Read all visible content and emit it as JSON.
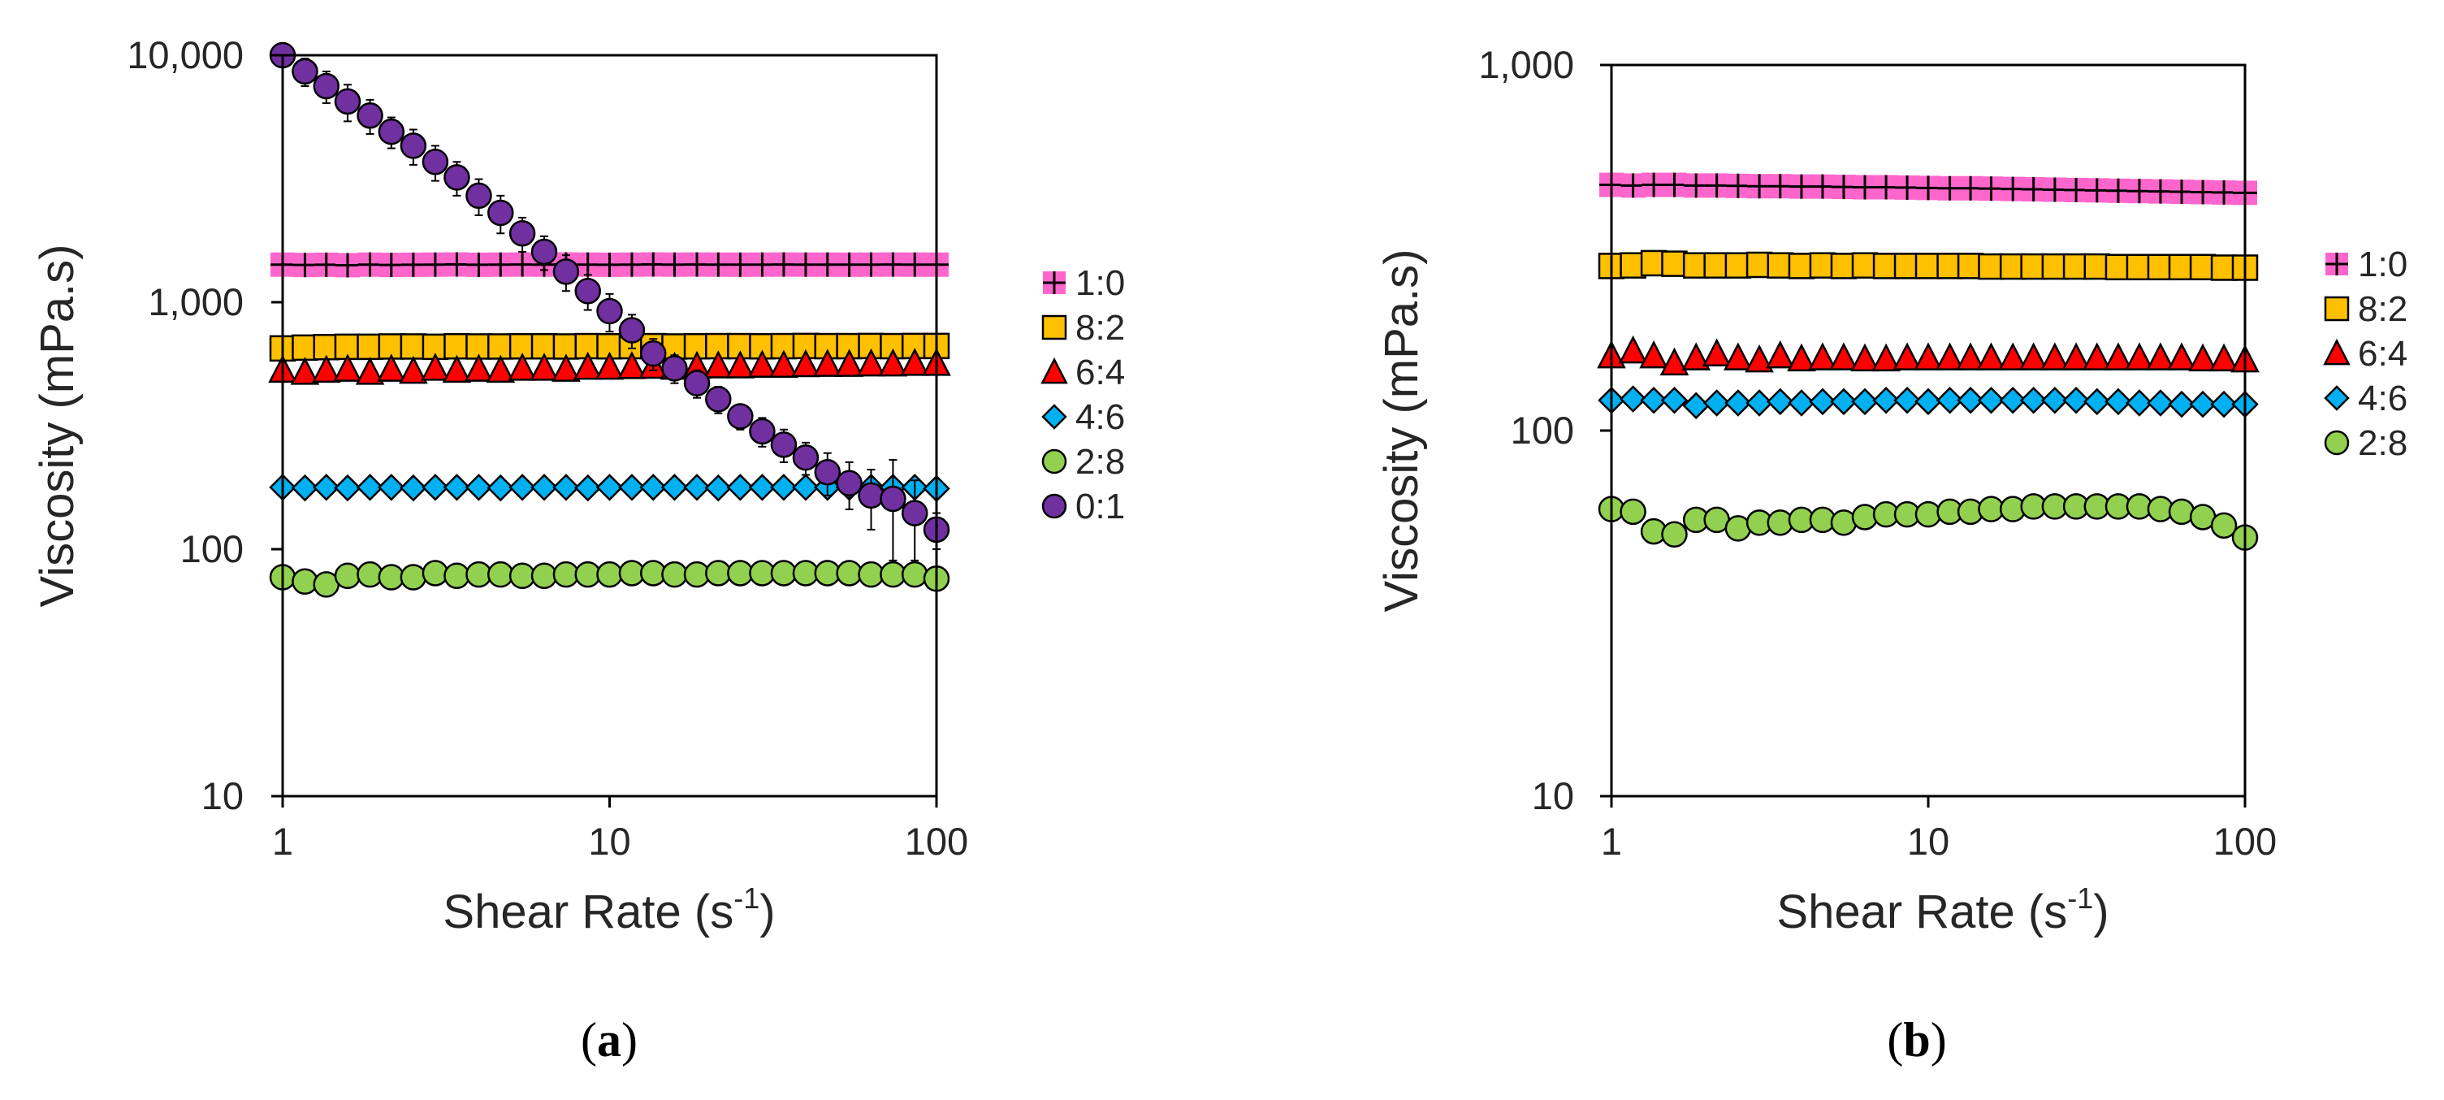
{
  "chart_data": [
    {
      "type": "scatter",
      "panel_label": "(a)",
      "panel_letter": "a",
      "xlabel": "Shear Rate (s",
      "xlabel_sup": "-1",
      "xlabel_end": ")",
      "ylabel": "Viscosity (mPa.s)",
      "xscale": "log",
      "yscale": "log",
      "xlim": [
        1,
        100
      ],
      "ylim": [
        10,
        10000
      ],
      "x_ticks": [
        1,
        10,
        100
      ],
      "x_tick_labels": [
        "1",
        "10",
        "100"
      ],
      "y_ticks": [
        10,
        100,
        1000,
        10000
      ],
      "y_tick_labels": [
        "10",
        "100",
        "1,000",
        "10,000"
      ],
      "grid": false,
      "legend_position": "right",
      "x": [
        1.0,
        1.17,
        1.36,
        1.58,
        1.85,
        2.15,
        2.51,
        2.93,
        3.41,
        3.98,
        4.64,
        5.41,
        6.31,
        7.36,
        8.58,
        10.0,
        11.7,
        13.6,
        15.8,
        18.5,
        21.5,
        25.1,
        29.3,
        34.1,
        39.8,
        46.4,
        54.1,
        63.1,
        73.6,
        85.8,
        100.0
      ],
      "series": [
        {
          "name": "1:0",
          "marker": "square-cross",
          "color": "#ff66cc",
          "values": [
            1420,
            1415,
            1418,
            1412,
            1420,
            1416,
            1418,
            1420,
            1422,
            1418,
            1420,
            1421,
            1420,
            1422,
            1420,
            1418,
            1420,
            1422,
            1420,
            1421,
            1420,
            1419,
            1420,
            1421,
            1420,
            1420,
            1419,
            1420,
            1421,
            1420,
            1420
          ]
        },
        {
          "name": "8:2",
          "marker": "square",
          "color": "#ffc000",
          "values": [
            650,
            655,
            658,
            660,
            660,
            662,
            662,
            660,
            663,
            662,
            662,
            663,
            663,
            662,
            664,
            663,
            664,
            664,
            662,
            663,
            664,
            664,
            663,
            664,
            665,
            664,
            664,
            665,
            664,
            665,
            665
          ]
        },
        {
          "name": "6:4",
          "marker": "triangle",
          "color": "#ff0000",
          "values": [
            530,
            520,
            530,
            535,
            520,
            535,
            525,
            540,
            530,
            535,
            530,
            540,
            540,
            535,
            545,
            545,
            548,
            550,
            545,
            550,
            552,
            552,
            555,
            555,
            558,
            560,
            560,
            562,
            562,
            565,
            565
          ]
        },
        {
          "name": "4:6",
          "marker": "diamond",
          "color": "#00b0f0",
          "values": [
            178,
            177,
            178,
            177,
            178,
            178,
            177,
            178,
            178,
            178,
            177,
            178,
            178,
            178,
            177,
            178,
            178,
            178,
            178,
            178,
            177,
            178,
            178,
            178,
            178,
            178,
            178,
            178,
            178,
            178,
            176
          ]
        },
        {
          "name": "2:8",
          "marker": "circle",
          "color": "#92d050",
          "values": [
            77,
            74,
            72,
            78,
            79,
            77,
            77,
            80,
            78,
            79,
            79,
            78,
            78,
            79,
            79,
            79,
            80,
            80,
            79,
            79,
            80,
            80,
            80,
            80,
            80,
            80,
            80,
            79,
            79,
            79,
            76
          ]
        },
        {
          "name": "0:1",
          "marker": "circle",
          "color": "#7030a0",
          "values": [
            10000,
            8600,
            7500,
            6500,
            5700,
            4900,
            4300,
            3700,
            3200,
            2700,
            2300,
            1900,
            1600,
            1330,
            1110,
            920,
            770,
            620,
            540,
            470,
            405,
            345,
            300,
            265,
            235,
            205,
            185,
            165,
            160,
            140,
            120
          ],
          "errors": [
            0,
            1100,
            1100,
            1100,
            900,
            700,
            700,
            600,
            500,
            450,
            400,
            300,
            250,
            220,
            180,
            160,
            120,
            90,
            70,
            60,
            50,
            40,
            40,
            40,
            35,
            40,
            40,
            45,
            70,
            50,
            20
          ]
        }
      ]
    },
    {
      "type": "scatter",
      "panel_label": "(b)",
      "panel_letter": "b",
      "xlabel": "Shear Rate (s",
      "xlabel_sup": "-1",
      "xlabel_end": ")",
      "ylabel": "Viscosity (mPa.s)",
      "xscale": "log",
      "yscale": "log",
      "xlim": [
        1,
        100
      ],
      "ylim": [
        10,
        1000
      ],
      "x_ticks": [
        1,
        10,
        100
      ],
      "x_tick_labels": [
        "1",
        "10",
        "100"
      ],
      "y_ticks": [
        10,
        100,
        1000
      ],
      "y_tick_labels": [
        "10",
        "100",
        "1,000"
      ],
      "grid": false,
      "legend_position": "right",
      "x": [
        1.0,
        1.17,
        1.36,
        1.58,
        1.85,
        2.15,
        2.51,
        2.93,
        3.41,
        3.98,
        4.64,
        5.41,
        6.31,
        7.36,
        8.58,
        10.0,
        11.7,
        13.6,
        15.8,
        18.5,
        21.5,
        25.1,
        29.3,
        34.1,
        39.8,
        46.4,
        54.1,
        63.1,
        73.6,
        85.8,
        100.0
      ],
      "series": [
        {
          "name": "1:0",
          "marker": "square-cross",
          "color": "#ff66cc",
          "values": [
            470,
            468,
            470,
            470,
            468,
            468,
            467,
            466,
            466,
            465,
            465,
            464,
            463,
            463,
            462,
            461,
            460,
            460,
            459,
            458,
            457,
            456,
            455,
            454,
            453,
            452,
            451,
            450,
            449,
            448,
            447
          ]
        },
        {
          "name": "8:2",
          "marker": "square",
          "color": "#ffc000",
          "values": [
            282,
            283,
            287,
            286,
            283,
            283,
            283,
            284,
            283,
            282,
            283,
            282,
            283,
            282,
            282,
            282,
            282,
            282,
            281,
            281,
            281,
            281,
            281,
            281,
            280,
            280,
            280,
            280,
            280,
            279,
            279
          ]
        },
        {
          "name": "6:4",
          "marker": "triangle",
          "color": "#ff0000",
          "values": [
            160,
            165,
            160,
            153,
            158,
            162,
            158,
            156,
            160,
            157,
            158,
            158,
            157,
            157,
            158,
            158,
            158,
            158,
            158,
            158,
            158,
            158,
            158,
            158,
            158,
            158,
            158,
            158,
            157,
            157,
            156
          ]
        },
        {
          "name": "4:6",
          "marker": "diamond",
          "color": "#00b0f0",
          "values": [
            121,
            122,
            121,
            121,
            117,
            119,
            119,
            119,
            120,
            119,
            120,
            120,
            120,
            121,
            121,
            120,
            121,
            121,
            121,
            121,
            121,
            121,
            121,
            120,
            120,
            119,
            119,
            118,
            118,
            118,
            118
          ]
        },
        {
          "name": "2:8",
          "marker": "circle",
          "color": "#92d050",
          "values": [
            61,
            60,
            53,
            52,
            57,
            57,
            54,
            56,
            56,
            57,
            57,
            56,
            58,
            59,
            59,
            59,
            60,
            60,
            61,
            61,
            62,
            62,
            62,
            62,
            62,
            62,
            61,
            60,
            58,
            55,
            51
          ]
        }
      ]
    }
  ]
}
